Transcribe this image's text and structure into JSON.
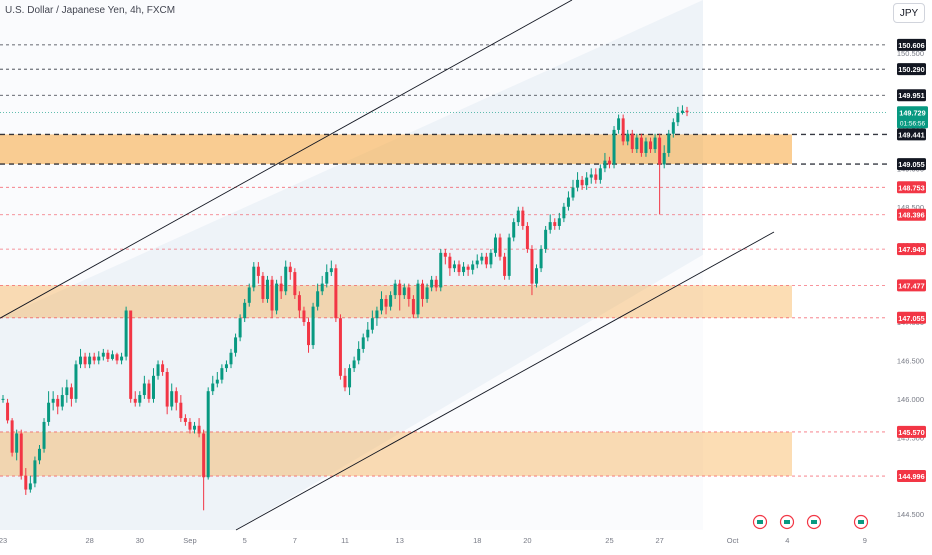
{
  "header": {
    "symbol": "U.S. Dollar / Japanese Yen, 4h, FXCM",
    "currency_button": "JPY"
  },
  "colors": {
    "up": "#089981",
    "down": "#f23645",
    "zone": "#f7a53b",
    "channel": "#eaf0f7",
    "price_marker": "#089981"
  },
  "chart_data": {
    "type": "candlestick",
    "instrument": "U.S. Dollar / Japanese Yen",
    "timeframe": "4h",
    "source": "FXCM",
    "ylim": [
      144.45,
      150.93
    ],
    "y_ticks": [
      "144.500",
      "145.000",
      "145.500",
      "146.000",
      "146.500",
      "147.000",
      "147.500",
      "148.000",
      "148.500",
      "149.000",
      "149.500",
      "150.000",
      "150.500"
    ],
    "x_ticks": [
      {
        "label": "23",
        "bar": 0
      },
      {
        "label": "28",
        "bar": 19
      },
      {
        "label": "30",
        "bar": 30
      },
      {
        "label": "Sep",
        "bar": 41
      },
      {
        "label": "5",
        "bar": 53
      },
      {
        "label": "7",
        "bar": 64
      },
      {
        "label": "11",
        "bar": 75
      },
      {
        "label": "13",
        "bar": 87
      },
      {
        "label": "18",
        "bar": 104
      },
      {
        "label": "20",
        "bar": 115
      },
      {
        "label": "25",
        "bar": 133
      },
      {
        "label": "27",
        "bar": 144
      },
      {
        "label": "Oct",
        "bar": 160
      },
      {
        "label": "4",
        "bar": 172
      },
      {
        "label": "9",
        "bar": 189
      }
    ],
    "last_price": "149.729",
    "countdown": "01:56:56",
    "levels": [
      {
        "price": 150.606,
        "label": "150.606",
        "kind": "resistance"
      },
      {
        "price": 150.29,
        "label": "150.290",
        "kind": "resistance"
      },
      {
        "price": 149.951,
        "label": "149.951",
        "kind": "resistance"
      },
      {
        "price": 149.441,
        "label": "149.441",
        "kind": "zone-edge"
      },
      {
        "price": 149.055,
        "label": "149.055",
        "kind": "zone-edge"
      },
      {
        "price": 148.753,
        "label": "148.753",
        "kind": "support"
      },
      {
        "price": 148.396,
        "label": "148.396",
        "kind": "support"
      },
      {
        "price": 147.949,
        "label": "147.949",
        "kind": "support"
      },
      {
        "price": 147.477,
        "label": "147.477",
        "kind": "support"
      },
      {
        "price": 147.055,
        "label": "147.055",
        "kind": "support"
      },
      {
        "price": 145.57,
        "label": "145.570",
        "kind": "support"
      },
      {
        "price": 144.996,
        "label": "144.996",
        "kind": "support"
      }
    ],
    "zones": [
      {
        "low": 149.055,
        "high": 149.441
      },
      {
        "low": 147.055,
        "high": 147.477
      },
      {
        "low": 144.996,
        "high": 145.57
      }
    ],
    "channel": {
      "upper": [
        [
          0,
          147.05
        ],
        [
          123,
          151.1
        ]
      ],
      "lower": [
        [
          51,
          144.5
        ],
        [
          166,
          148.4
        ]
      ]
    },
    "event_markers": 4,
    "candles": [
      [
        146.0,
        146.0,
        145.95,
        146.05
      ],
      [
        145.95,
        145.72,
        145.68,
        146.0
      ],
      [
        145.72,
        145.3,
        145.25,
        145.75
      ],
      [
        145.3,
        145.55,
        145.2,
        145.6
      ],
      [
        145.55,
        145.0,
        144.95,
        145.6
      ],
      [
        145.0,
        144.82,
        144.75,
        145.1
      ],
      [
        144.82,
        144.9,
        144.78,
        145.0
      ],
      [
        144.9,
        145.2,
        144.85,
        145.25
      ],
      [
        145.2,
        145.35,
        145.15,
        145.4
      ],
      [
        145.35,
        145.7,
        145.3,
        145.75
      ],
      [
        145.7,
        145.95,
        145.65,
        146.1
      ],
      [
        145.95,
        146.0,
        145.85,
        146.1
      ],
      [
        146.0,
        145.9,
        145.8,
        146.05
      ],
      [
        145.9,
        146.05,
        145.85,
        146.15
      ],
      [
        146.05,
        146.15,
        145.95,
        146.25
      ],
      [
        146.15,
        146.0,
        145.9,
        146.2
      ],
      [
        146.0,
        146.45,
        145.95,
        146.5
      ],
      [
        146.45,
        146.55,
        146.4,
        146.65
      ],
      [
        146.55,
        146.45,
        146.4,
        146.6
      ],
      [
        146.45,
        146.55,
        146.4,
        146.6
      ],
      [
        146.55,
        146.5,
        146.45,
        146.6
      ],
      [
        146.5,
        146.55,
        146.45,
        146.62
      ],
      [
        146.55,
        146.6,
        146.5,
        146.65
      ],
      [
        146.6,
        146.52,
        146.48,
        146.64
      ],
      [
        146.52,
        146.58,
        146.5,
        146.63
      ],
      [
        146.58,
        146.5,
        146.45,
        146.6
      ],
      [
        146.5,
        146.55,
        146.45,
        146.6
      ],
      [
        146.55,
        147.15,
        146.5,
        147.2
      ],
      [
        147.15,
        146.0,
        145.95,
        147.15
      ],
      [
        146.0,
        145.95,
        145.9,
        146.1
      ],
      [
        145.95,
        146.05,
        145.9,
        146.1
      ],
      [
        146.05,
        146.2,
        146.0,
        146.3
      ],
      [
        146.2,
        146.0,
        145.95,
        146.25
      ],
      [
        146.0,
        146.3,
        145.95,
        146.4
      ],
      [
        146.3,
        146.45,
        146.25,
        146.5
      ],
      [
        146.45,
        146.35,
        146.3,
        146.5
      ],
      [
        146.35,
        145.9,
        145.8,
        146.4
      ],
      [
        145.9,
        146.1,
        145.85,
        146.2
      ],
      [
        146.1,
        145.95,
        145.85,
        146.15
      ],
      [
        145.95,
        145.75,
        145.7,
        146.05
      ],
      [
        145.75,
        145.7,
        145.65,
        145.8
      ],
      [
        145.7,
        145.6,
        145.55,
        145.75
      ],
      [
        145.6,
        145.65,
        145.55,
        145.7
      ],
      [
        145.65,
        145.55,
        145.5,
        145.75
      ],
      [
        145.55,
        144.98,
        144.55,
        145.6
      ],
      [
        144.98,
        146.1,
        144.95,
        146.15
      ],
      [
        146.1,
        146.2,
        146.05,
        146.3
      ],
      [
        146.2,
        146.25,
        146.15,
        146.35
      ],
      [
        146.25,
        146.4,
        146.2,
        146.45
      ],
      [
        146.4,
        146.45,
        146.35,
        146.5
      ],
      [
        146.45,
        146.6,
        146.4,
        146.65
      ],
      [
        146.6,
        146.8,
        146.55,
        146.85
      ],
      [
        146.8,
        147.05,
        146.75,
        147.1
      ],
      [
        147.05,
        147.25,
        147.0,
        147.3
      ],
      [
        147.25,
        147.45,
        147.2,
        147.5
      ],
      [
        147.45,
        147.72,
        147.4,
        147.78
      ],
      [
        147.72,
        147.6,
        147.5,
        147.78
      ],
      [
        147.6,
        147.3,
        147.25,
        147.65
      ],
      [
        147.3,
        147.55,
        147.25,
        147.6
      ],
      [
        147.55,
        147.15,
        147.05,
        147.6
      ],
      [
        147.15,
        147.5,
        147.1,
        147.55
      ],
      [
        147.5,
        147.4,
        147.3,
        147.6
      ],
      [
        147.4,
        147.72,
        147.35,
        147.8
      ],
      [
        147.72,
        147.65,
        147.55,
        147.78
      ],
      [
        147.65,
        147.35,
        147.3,
        147.7
      ],
      [
        147.35,
        147.15,
        147.05,
        147.4
      ],
      [
        147.15,
        147.0,
        146.95,
        147.2
      ],
      [
        147.0,
        146.7,
        146.6,
        147.05
      ],
      [
        146.7,
        147.2,
        146.65,
        147.25
      ],
      [
        147.2,
        147.4,
        147.15,
        147.5
      ],
      [
        147.4,
        147.5,
        147.35,
        147.6
      ],
      [
        147.5,
        147.65,
        147.45,
        147.75
      ],
      [
        147.65,
        147.7,
        147.6,
        147.8
      ],
      [
        147.7,
        147.05,
        147.0,
        147.75
      ],
      [
        147.05,
        146.3,
        146.25,
        147.1
      ],
      [
        146.3,
        146.15,
        146.1,
        146.4
      ],
      [
        146.15,
        146.4,
        146.05,
        146.45
      ],
      [
        146.4,
        146.5,
        146.35,
        146.55
      ],
      [
        146.5,
        146.65,
        146.45,
        146.75
      ],
      [
        146.65,
        146.8,
        146.6,
        146.85
      ],
      [
        146.8,
        146.9,
        146.75,
        147.0
      ],
      [
        146.9,
        147.05,
        146.85,
        147.15
      ],
      [
        147.05,
        147.15,
        146.95,
        147.2
      ],
      [
        147.15,
        147.3,
        147.1,
        147.4
      ],
      [
        147.3,
        147.2,
        147.1,
        147.35
      ],
      [
        147.2,
        147.35,
        147.15,
        147.4
      ],
      [
        147.35,
        147.5,
        147.3,
        147.55
      ],
      [
        147.5,
        147.35,
        147.15,
        147.55
      ],
      [
        147.35,
        147.45,
        147.3,
        147.5
      ],
      [
        147.45,
        147.3,
        147.2,
        147.5
      ],
      [
        147.3,
        147.1,
        147.05,
        147.35
      ],
      [
        147.1,
        147.5,
        147.05,
        147.55
      ],
      [
        147.5,
        147.3,
        147.2,
        147.55
      ],
      [
        147.3,
        147.45,
        147.25,
        147.5
      ],
      [
        147.45,
        147.55,
        147.4,
        147.6
      ],
      [
        147.55,
        147.45,
        147.4,
        147.6
      ],
      [
        147.45,
        147.9,
        147.4,
        147.95
      ],
      [
        147.9,
        147.85,
        147.75,
        147.95
      ],
      [
        147.85,
        147.7,
        147.6,
        147.9
      ],
      [
        147.7,
        147.75,
        147.65,
        147.8
      ],
      [
        147.75,
        147.65,
        147.6,
        147.8
      ],
      [
        147.65,
        147.72,
        147.6,
        147.78
      ],
      [
        147.72,
        147.68,
        147.6,
        147.75
      ],
      [
        147.68,
        147.75,
        147.62,
        147.8
      ],
      [
        147.75,
        147.8,
        147.7,
        147.88
      ],
      [
        147.8,
        147.85,
        147.75,
        147.9
      ],
      [
        147.85,
        147.75,
        147.7,
        147.9
      ],
      [
        147.75,
        147.9,
        147.7,
        147.95
      ],
      [
        147.9,
        148.1,
        147.85,
        148.15
      ],
      [
        148.1,
        147.85,
        147.8,
        148.15
      ],
      [
        147.85,
        147.6,
        147.55,
        147.9
      ],
      [
        147.6,
        148.1,
        147.55,
        148.15
      ],
      [
        148.1,
        148.3,
        148.05,
        148.35
      ],
      [
        148.3,
        148.45,
        148.25,
        148.5
      ],
      [
        148.45,
        148.25,
        148.2,
        148.5
      ],
      [
        148.25,
        147.95,
        147.9,
        148.3
      ],
      [
        147.95,
        147.5,
        147.35,
        148.0
      ],
      [
        147.5,
        147.7,
        147.45,
        147.75
      ],
      [
        147.7,
        147.95,
        147.65,
        148.0
      ],
      [
        147.95,
        148.2,
        147.9,
        148.25
      ],
      [
        148.2,
        148.3,
        148.15,
        148.4
      ],
      [
        148.3,
        148.25,
        148.2,
        148.35
      ],
      [
        148.25,
        148.35,
        148.2,
        148.42
      ],
      [
        148.35,
        148.5,
        148.3,
        148.55
      ],
      [
        148.5,
        148.62,
        148.45,
        148.7
      ],
      [
        148.62,
        148.75,
        148.58,
        148.85
      ],
      [
        148.75,
        148.85,
        148.7,
        148.95
      ],
      [
        148.85,
        148.78,
        148.72,
        148.9
      ],
      [
        148.78,
        148.88,
        148.72,
        148.95
      ],
      [
        148.88,
        148.92,
        148.8,
        149.0
      ],
      [
        148.92,
        148.85,
        148.8,
        149.0
      ],
      [
        148.85,
        149.0,
        148.8,
        149.05
      ],
      [
        149.0,
        149.1,
        148.95,
        149.2
      ],
      [
        149.1,
        149.05,
        149.0,
        149.15
      ],
      [
        149.05,
        149.5,
        149.0,
        149.55
      ],
      [
        149.5,
        149.65,
        149.45,
        149.7
      ],
      [
        149.65,
        149.35,
        149.3,
        149.7
      ],
      [
        149.35,
        149.45,
        149.3,
        149.5
      ],
      [
        149.45,
        149.25,
        149.2,
        149.5
      ],
      [
        149.25,
        149.4,
        149.2,
        149.45
      ],
      [
        149.4,
        149.2,
        149.15,
        149.45
      ],
      [
        149.2,
        149.35,
        149.15,
        149.4
      ],
      [
        149.35,
        149.25,
        149.2,
        149.4
      ],
      [
        149.25,
        149.4,
        149.2,
        149.45
      ],
      [
        149.4,
        149.05,
        148.4,
        149.45
      ],
      [
        149.05,
        149.2,
        149.0,
        149.3
      ],
      [
        149.2,
        149.45,
        149.15,
        149.5
      ],
      [
        149.45,
        149.6,
        149.4,
        149.65
      ],
      [
        149.6,
        149.72,
        149.55,
        149.8
      ],
      [
        149.72,
        149.75,
        149.7,
        149.82
      ],
      [
        149.75,
        149.73,
        149.68,
        149.8
      ]
    ]
  }
}
